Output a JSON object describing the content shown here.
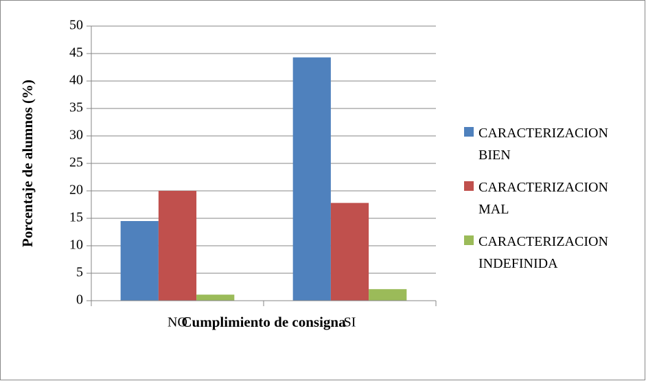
{
  "chart_data": {
    "type": "bar",
    "xlabel": "Cumplimiento de consigna",
    "ylabel": "Porcentaje de alumnos (%)",
    "categories": [
      "NO",
      "SI"
    ],
    "series": [
      {
        "name": "CARACTERIZACION BIEN",
        "color": "#4f81bd",
        "values": [
          14.5,
          44.3
        ]
      },
      {
        "name": "CARACTERIZACION MAL",
        "color": "#c0504d",
        "values": [
          20,
          17.8
        ]
      },
      {
        "name": "CARACTERIZACION INDEFINIDA",
        "color": "#9bbb59",
        "values": [
          1.1,
          2.1
        ]
      }
    ],
    "ylim": [
      0,
      50
    ],
    "yticks": [
      0,
      5,
      10,
      15,
      20,
      25,
      30,
      35,
      40,
      45,
      50
    ],
    "grid": true,
    "legend": "right"
  }
}
